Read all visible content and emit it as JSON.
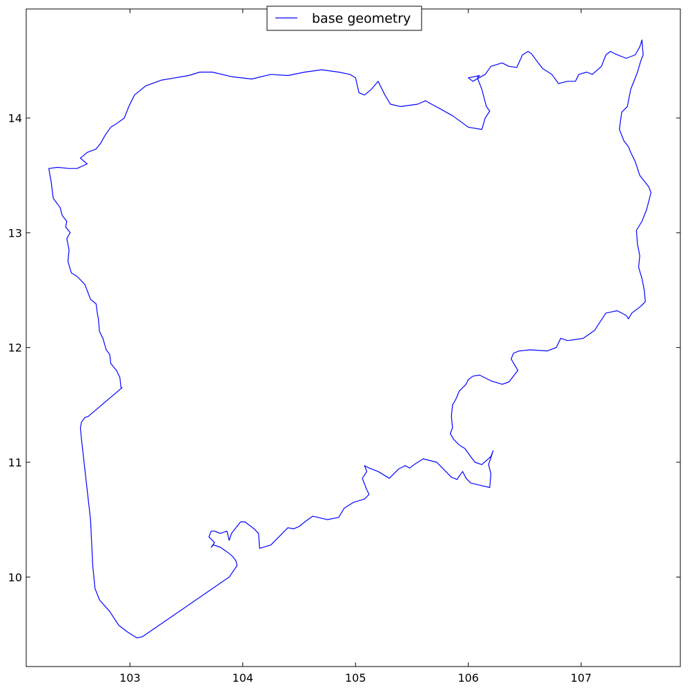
{
  "chart_data": {
    "type": "line",
    "title": "",
    "xlabel": "",
    "ylabel": "",
    "xlim": [
      102.08,
      107.88
    ],
    "ylim": [
      9.22,
      14.95
    ],
    "xticks": [
      103,
      104,
      105,
      106,
      107
    ],
    "yticks": [
      10,
      11,
      12,
      13,
      14
    ],
    "grid": false,
    "legend": {
      "position": "top-center"
    },
    "series": [
      {
        "name": "base geometry",
        "color": "#0000ff",
        "x": [
          102.92,
          102.91,
          102.88,
          102.83,
          102.82,
          102.79,
          102.76,
          102.73,
          102.72,
          102.71,
          102.7,
          102.65,
          102.6,
          102.53,
          102.48,
          102.45,
          102.46,
          102.44,
          102.47,
          102.43,
          102.44,
          102.4,
          102.38,
          102.32,
          102.3,
          102.28,
          102.36,
          102.46,
          102.53,
          102.62,
          102.56,
          102.62,
          102.7,
          102.74,
          102.78,
          102.83,
          102.88,
          102.95,
          102.99,
          103.04,
          103.14,
          103.28,
          103.4,
          103.52,
          103.62,
          103.73,
          103.9,
          104.08,
          104.25,
          104.4,
          104.55,
          104.7,
          104.85,
          104.95,
          105.0,
          105.03,
          105.08,
          105.14,
          105.2,
          105.26,
          105.31,
          105.4,
          105.55,
          105.62,
          105.75,
          105.86,
          106.0,
          106.12,
          106.15,
          106.19,
          106.16,
          106.12,
          106.08,
          106.1,
          106.0,
          106.04,
          106.15,
          106.2,
          106.3,
          106.36,
          106.43,
          106.48,
          106.53,
          106.56,
          106.62,
          106.66,
          106.74,
          106.8,
          106.88,
          106.95,
          106.98,
          107.05,
          107.1,
          107.18,
          107.22,
          107.26,
          107.3,
          107.4,
          107.48,
          107.52,
          107.54,
          107.55,
          107.53,
          107.5,
          107.46,
          107.44,
          107.41,
          107.36,
          107.35,
          107.34,
          107.38,
          107.42,
          107.44,
          107.48,
          107.52,
          107.6,
          107.62,
          107.58,
          107.54,
          107.49,
          107.5,
          107.52,
          107.51,
          107.54,
          107.56,
          107.57,
          107.53,
          107.45,
          107.42,
          107.4,
          107.32,
          107.22,
          107.12,
          107.02,
          106.95,
          106.88,
          106.82,
          106.78,
          106.7,
          106.55,
          106.45,
          106.4,
          106.38,
          106.44,
          106.36,
          106.3,
          106.2,
          106.1,
          106.04,
          106.0,
          105.98,
          105.92,
          105.89,
          105.86,
          105.85,
          105.86,
          105.84,
          105.87,
          105.92,
          105.97,
          106.02,
          106.06,
          106.12,
          106.2,
          106.22,
          106.18,
          106.2,
          106.19,
          106.1,
          106.02,
          105.98,
          105.95,
          105.92,
          105.9,
          105.85,
          105.78,
          105.72,
          105.6,
          105.52,
          105.48,
          105.44,
          105.38,
          105.3,
          105.2,
          105.12,
          105.08,
          105.1,
          105.06,
          105.1,
          105.12,
          105.08,
          104.98,
          104.9,
          104.85,
          104.75,
          104.62,
          104.55,
          104.5,
          104.45,
          104.4,
          104.25,
          104.15,
          104.14,
          104.1,
          104.02,
          103.98,
          103.94,
          103.9,
          103.88,
          103.86,
          103.8,
          103.75,
          103.72,
          103.7,
          103.75,
          103.72,
          103.74,
          103.8,
          103.86,
          103.91,
          103.94,
          103.95,
          103.88,
          103.11,
          103.06,
          102.98,
          102.9,
          102.82,
          102.73,
          102.69,
          102.67,
          102.65,
          102.57,
          102.56,
          102.57,
          102.6,
          102.63,
          102.93,
          102.92
        ],
        "y": [
          11.65,
          11.74,
          11.8,
          11.86,
          11.94,
          11.98,
          12.08,
          12.14,
          12.25,
          12.3,
          12.38,
          12.42,
          12.55,
          12.62,
          12.65,
          12.75,
          12.85,
          12.95,
          13.0,
          13.05,
          13.1,
          13.15,
          13.22,
          13.3,
          13.45,
          13.56,
          13.57,
          13.56,
          13.56,
          13.6,
          13.65,
          13.7,
          13.73,
          13.78,
          13.85,
          13.92,
          13.95,
          14.0,
          14.1,
          14.2,
          14.28,
          14.33,
          14.35,
          14.37,
          14.4,
          14.4,
          14.36,
          14.34,
          14.38,
          14.37,
          14.4,
          14.42,
          14.4,
          14.38,
          14.35,
          14.22,
          14.2,
          14.25,
          14.32,
          14.2,
          14.12,
          14.1,
          14.12,
          14.15,
          14.08,
          14.02,
          13.92,
          13.9,
          14.0,
          14.06,
          14.1,
          14.25,
          14.35,
          14.37,
          14.35,
          14.32,
          14.38,
          14.45,
          14.48,
          14.45,
          14.44,
          14.55,
          14.58,
          14.56,
          14.48,
          14.43,
          14.38,
          14.3,
          14.32,
          14.32,
          14.38,
          14.4,
          14.38,
          14.45,
          14.55,
          14.58,
          14.56,
          14.52,
          14.55,
          14.62,
          14.68,
          14.55,
          14.5,
          14.4,
          14.3,
          14.25,
          14.1,
          14.05,
          13.98,
          13.9,
          13.8,
          13.75,
          13.7,
          13.62,
          13.5,
          13.4,
          13.35,
          13.2,
          13.1,
          13.02,
          12.9,
          12.8,
          12.7,
          12.6,
          12.5,
          12.4,
          12.36,
          12.3,
          12.25,
          12.28,
          12.32,
          12.3,
          12.15,
          12.08,
          12.07,
          12.06,
          12.08,
          12.0,
          11.97,
          11.98,
          11.97,
          11.95,
          11.9,
          11.8,
          11.7,
          11.68,
          11.71,
          11.76,
          11.75,
          11.72,
          11.68,
          11.62,
          11.55,
          11.5,
          11.4,
          11.3,
          11.25,
          11.2,
          11.15,
          11.12,
          11.05,
          11.0,
          10.98,
          11.05,
          11.1,
          10.98,
          10.9,
          10.78,
          10.8,
          10.82,
          10.86,
          10.92,
          10.88,
          10.85,
          10.87,
          10.94,
          11.0,
          11.03,
          10.98,
          10.95,
          10.97,
          10.94,
          10.86,
          10.92,
          10.95,
          10.97,
          10.92,
          10.86,
          10.76,
          10.72,
          10.68,
          10.65,
          10.6,
          10.52,
          10.5,
          10.53,
          10.48,
          10.44,
          10.42,
          10.43,
          10.28,
          10.25,
          10.38,
          10.42,
          10.48,
          10.48,
          10.43,
          10.38,
          10.32,
          10.4,
          10.38,
          10.4,
          10.4,
          10.35,
          10.3,
          10.26,
          10.28,
          10.26,
          10.22,
          10.18,
          10.14,
          10.1,
          10.0,
          9.48,
          9.47,
          9.52,
          9.58,
          9.7,
          9.8,
          9.9,
          10.1,
          10.5,
          11.2,
          11.3,
          11.35,
          11.39,
          11.4,
          11.65,
          11.65
        ]
      }
    ]
  }
}
